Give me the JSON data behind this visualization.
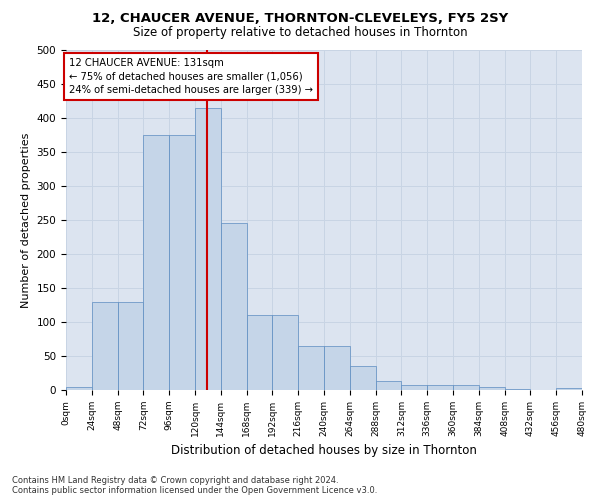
{
  "title1": "12, CHAUCER AVENUE, THORNTON-CLEVELEYS, FY5 2SY",
  "title2": "Size of property relative to detached houses in Thornton",
  "xlabel": "Distribution of detached houses by size in Thornton",
  "ylabel": "Number of detached properties",
  "footnote1": "Contains HM Land Registry data © Crown copyright and database right 2024.",
  "footnote2": "Contains public sector information licensed under the Open Government Licence v3.0.",
  "bar_color": "#c5d5e8",
  "bar_edge_color": "#5b8bc0",
  "bin_width": 24,
  "bar_heights": [
    4,
    130,
    130,
    375,
    375,
    415,
    245,
    110,
    110,
    65,
    65,
    35,
    13,
    8,
    7,
    7,
    5,
    2,
    0,
    3
  ],
  "property_size": 131,
  "vline_color": "#cc0000",
  "annotation_text": "12 CHAUCER AVENUE: 131sqm\n← 75% of detached houses are smaller (1,056)\n24% of semi-detached houses are larger (339) →",
  "annotation_box_color": "#ffffff",
  "annotation_box_edge": "#cc0000",
  "grid_color": "#c8d4e4",
  "background_color": "#dce4f0",
  "ylim": [
    0,
    500
  ],
  "xlim": [
    0,
    480
  ],
  "yticks": [
    0,
    50,
    100,
    150,
    200,
    250,
    300,
    350,
    400,
    450,
    500
  ],
  "tick_labels": [
    "0sqm",
    "24sqm",
    "48sqm",
    "72sqm",
    "96sqm",
    "120sqm",
    "144sqm",
    "168sqm",
    "192sqm",
    "216sqm",
    "240sqm",
    "264sqm",
    "288sqm",
    "312sqm",
    "336sqm",
    "360sqm",
    "384sqm",
    "408sqm",
    "432sqm",
    "456sqm",
    "480sqm"
  ]
}
